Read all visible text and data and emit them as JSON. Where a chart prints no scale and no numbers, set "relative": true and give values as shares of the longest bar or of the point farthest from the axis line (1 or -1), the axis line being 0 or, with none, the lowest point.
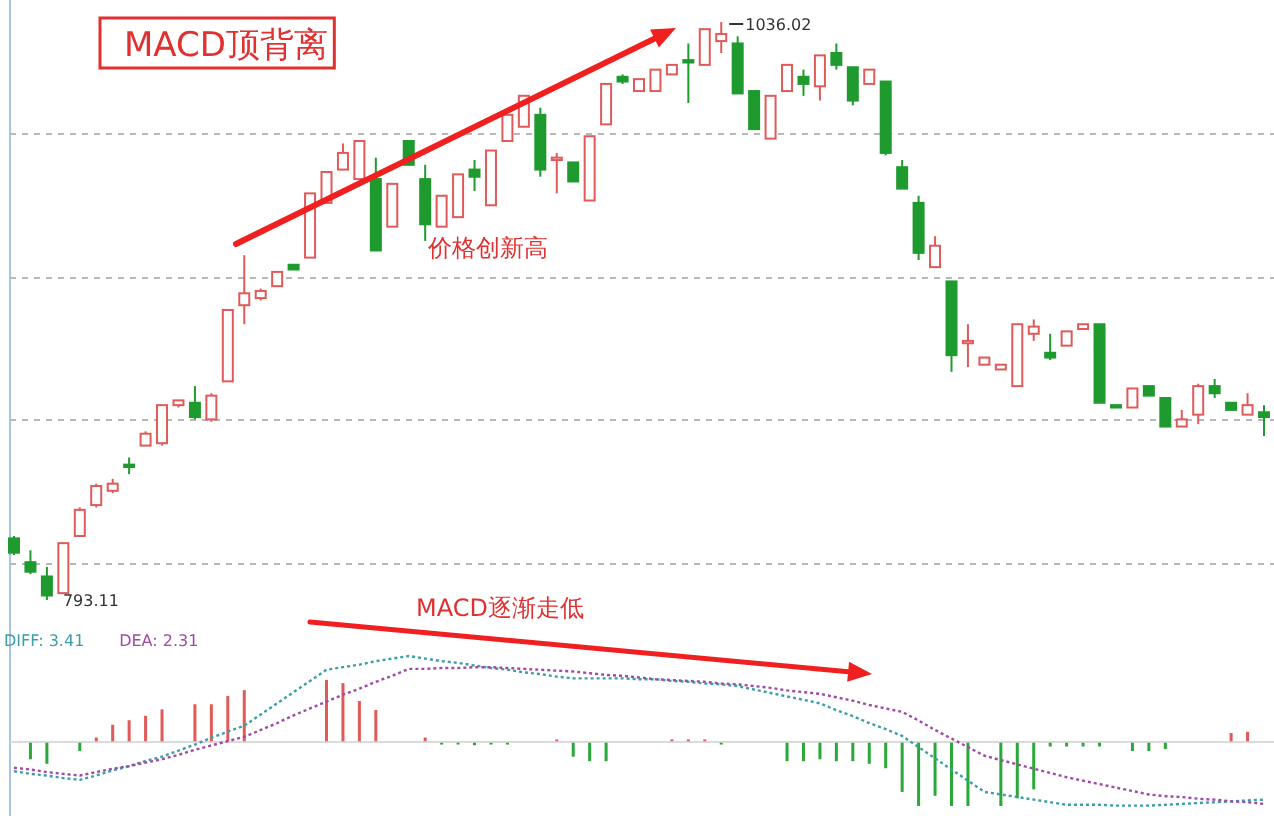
{
  "chart_data": [
    {
      "type": "candlestick",
      "title": "MACD顶背离",
      "categories": [
        null,
        null,
        null,
        null,
        null,
        null,
        null,
        null,
        null,
        null,
        null,
        null,
        null,
        null,
        null,
        null,
        null,
        null,
        null,
        null,
        null,
        null,
        null,
        null,
        null,
        null,
        null,
        null,
        null,
        null,
        null,
        null,
        null,
        null,
        null,
        null,
        null,
        null,
        null,
        null,
        null,
        null,
        null,
        null,
        null,
        null,
        null,
        null,
        null,
        null,
        null,
        null,
        null,
        null,
        null,
        null,
        null,
        null,
        null,
        null,
        null,
        null,
        null,
        null,
        null,
        null,
        null,
        null,
        null,
        null,
        null,
        null,
        null,
        null,
        null,
        null,
        null
      ],
      "ohlc": [
        [
          819,
          820,
          812,
          813
        ],
        [
          809,
          814,
          804,
          805
        ],
        [
          803,
          807,
          793.11,
          795
        ],
        [
          796,
          817,
          796,
          817
        ],
        [
          820,
          832,
          820,
          831
        ],
        [
          833,
          842,
          832,
          841
        ],
        [
          839,
          844,
          838,
          842
        ],
        [
          850,
          853,
          846,
          849
        ],
        [
          858,
          864,
          858,
          863
        ],
        [
          859,
          875,
          858,
          875
        ],
        [
          875,
          877,
          874,
          877
        ],
        [
          876,
          883,
          869,
          870
        ],
        [
          869,
          880,
          868,
          879
        ],
        [
          885,
          915,
          885,
          915
        ],
        [
          917,
          938,
          909,
          922
        ],
        [
          920,
          924,
          919,
          923
        ],
        [
          925,
          931,
          925,
          931
        ],
        [
          934,
          934,
          932,
          932
        ],
        [
          937,
          964,
          937,
          964
        ],
        [
          960,
          973,
          960,
          973
        ],
        [
          974,
          985,
          974,
          981
        ],
        [
          970,
          986,
          970,
          986
        ],
        [
          970,
          979,
          940,
          940
        ],
        [
          950,
          968,
          950,
          968
        ],
        [
          986,
          986,
          976,
          976
        ],
        [
          970,
          976,
          944,
          951
        ],
        [
          950,
          963,
          950,
          963
        ],
        [
          954,
          972,
          954,
          972
        ],
        [
          974,
          978,
          965,
          971
        ],
        [
          959,
          982,
          959,
          982
        ],
        [
          986,
          997,
          986,
          997
        ],
        [
          992,
          1005,
          992,
          1005
        ],
        [
          997,
          1000,
          971,
          974
        ],
        [
          978,
          981,
          964,
          979
        ],
        [
          977,
          977,
          969,
          969
        ],
        [
          961,
          988,
          961,
          988
        ],
        [
          993,
          1010,
          993,
          1010
        ],
        [
          1013,
          1014,
          1010,
          1011
        ],
        [
          1007,
          1012,
          1007,
          1012
        ],
        [
          1007,
          1016,
          1007,
          1016
        ],
        [
          1014,
          1018,
          1014,
          1018
        ],
        [
          1020,
          1027,
          1002,
          1019
        ],
        [
          1018,
          1033,
          1018,
          1033
        ],
        [
          1028,
          1036.02,
          1023,
          1031
        ],
        [
          1027,
          1030,
          1006,
          1006
        ],
        [
          1007,
          1007,
          991,
          991
        ],
        [
          987,
          1005,
          987,
          1005
        ],
        [
          1007,
          1018,
          1007,
          1018
        ],
        [
          1013,
          1016,
          1005,
          1010
        ],
        [
          1009,
          1022,
          1003,
          1022
        ],
        [
          1023,
          1027,
          1016,
          1018
        ],
        [
          1017,
          1017,
          1001,
          1003
        ],
        [
          1010,
          1016,
          1010,
          1016
        ],
        [
          1011,
          1011,
          980,
          981
        ],
        [
          975,
          978,
          966,
          966
        ],
        [
          960,
          963,
          936,
          939
        ],
        [
          933,
          946,
          933,
          942
        ],
        [
          927,
          927,
          889,
          896
        ],
        [
          901,
          909,
          891,
          902
        ],
        [
          892,
          895,
          892,
          895
        ],
        [
          890,
          892,
          890,
          892
        ],
        [
          883,
          909,
          883,
          909
        ],
        [
          905,
          911,
          902,
          908
        ],
        [
          897,
          905,
          894,
          895
        ],
        [
          900,
          906,
          900,
          906
        ],
        [
          907,
          909,
          907,
          909
        ],
        [
          909,
          909,
          876,
          876
        ],
        [
          875,
          875,
          874,
          874
        ],
        [
          874,
          882,
          874,
          882
        ],
        [
          883,
          883,
          879,
          879
        ],
        [
          878,
          878,
          866,
          866
        ],
        [
          866,
          873,
          866,
          869
        ],
        [
          871,
          884,
          867,
          883
        ],
        [
          883,
          886,
          878,
          880
        ],
        [
          876,
          876,
          873,
          873
        ],
        [
          871,
          880,
          871,
          875
        ],
        [
          872,
          875,
          862,
          870
        ]
      ],
      "grid": true,
      "annotations": [
        "价格创新高",
        "1036.02",
        "793.11"
      ]
    },
    {
      "type": "bar",
      "relative": true,
      "annotations": [
        "MACD逐渐走低"
      ],
      "categories": [
        null,
        null,
        null,
        null,
        null,
        null,
        null,
        null,
        null,
        null,
        null,
        null,
        null,
        null,
        null,
        null,
        null,
        null,
        null,
        null,
        null,
        null,
        null,
        null,
        null,
        null,
        null,
        null,
        null,
        null,
        null,
        null,
        null,
        null,
        null,
        null,
        null,
        null,
        null,
        null,
        null,
        null,
        null,
        null,
        null,
        null,
        null,
        null,
        null,
        null,
        null,
        null,
        null,
        null,
        null,
        null,
        null,
        null,
        null,
        null,
        null,
        null,
        null,
        null,
        null,
        null,
        null,
        null,
        null,
        null,
        null,
        null,
        null,
        null,
        null,
        null,
        null
      ],
      "values": [
        null,
        -0.27,
        -0.34,
        null,
        -0.14,
        0.07,
        0.27,
        0.34,
        0.41,
        0.51,
        null,
        0.59,
        0.59,
        0.72,
        0.81,
        null,
        null,
        null,
        null,
        0.97,
        0.92,
        0.64,
        0.5,
        null,
        null,
        0.07,
        -0.04,
        -0.04,
        -0.05,
        -0.04,
        -0.04,
        null,
        null,
        0.04,
        -0.23,
        -0.3,
        -0.3,
        null,
        null,
        null,
        0.04,
        0.04,
        0.04,
        -0.04,
        null,
        null,
        null,
        -0.3,
        -0.3,
        -0.27,
        -0.3,
        -0.3,
        -0.34,
        -0.41,
        -0.78,
        -1,
        -0.84,
        -1,
        -1,
        null,
        -1,
        -0.88,
        -0.74,
        -0.07,
        -0.07,
        -0.07,
        -0.07,
        null,
        -0.14,
        -0.14,
        -0.11,
        null,
        null,
        null,
        0.14,
        0.16,
        null
      ],
      "colors": [
        null,
        "#2aa83a",
        "#2aa83a",
        null,
        "#2aa83a",
        "#e05a5a",
        "#e05a5a",
        "#e05a5a",
        "#e05a5a",
        "#e05a5a",
        null,
        "#e05a5a",
        "#e05a5a",
        "#e05a5a",
        "#e05a5a",
        null,
        null,
        null,
        null,
        "#e05a5a",
        "#e05a5a",
        "#e05a5a",
        "#e05a5a",
        null,
        null,
        "#e05a5a",
        "#2aa83a",
        "#2aa83a",
        "#2aa83a",
        "#2aa83a",
        "#2aa83a",
        null,
        null,
        "#e05a5a",
        "#2aa83a",
        "#2aa83a",
        "#2aa83a",
        null,
        null,
        null,
        "#e05a5a",
        "#e05a5a",
        "#e05a5a",
        "#2aa83a",
        null,
        null,
        null,
        "#2aa83a",
        "#2aa83a",
        "#2aa83a",
        "#2aa83a",
        "#2aa83a",
        "#2aa83a",
        "#2aa83a",
        "#2aa83a",
        "#2aa83a",
        "#2aa83a",
        "#2aa83a",
        "#2aa83a",
        null,
        "#2aa83a",
        "#2aa83a",
        "#2aa83a",
        "#2aa83a",
        "#2aa83a",
        "#2aa83a",
        "#2aa83a",
        null,
        "#2aa83a",
        "#2aa83a",
        "#2aa83a",
        null,
        null,
        null,
        "#e05a5a",
        "#e05a5a",
        null
      ]
    },
    {
      "type": "line",
      "relative": true,
      "line_style": "dotted",
      "categories": [
        null,
        null,
        null,
        null,
        null,
        null,
        null,
        null,
        null,
        null,
        null,
        null,
        null,
        null,
        null,
        null,
        null,
        null,
        null,
        null,
        null,
        null,
        null,
        null,
        null,
        null,
        null,
        null,
        null,
        null,
        null,
        null,
        null,
        null,
        null,
        null,
        null,
        null,
        null,
        null,
        null,
        null,
        null,
        null,
        null,
        null,
        null,
        null,
        null,
        null,
        null,
        null,
        null,
        null,
        null,
        null,
        null,
        null,
        null,
        null,
        null,
        null,
        null,
        null,
        null,
        null,
        null,
        null,
        null,
        null,
        null,
        null,
        null,
        null,
        null,
        null,
        null
      ],
      "series": [
        {
          "name": "DIFF: 3.41",
          "color": "#3a9fa8",
          "values": [
            -0.34,
            -0.37,
            -0.39,
            -0.42,
            -0.44,
            -0.39,
            -0.33,
            -0.28,
            -0.22,
            -0.17,
            -0.1,
            -0.03,
            0.05,
            0.12,
            0.19,
            0.32,
            0.45,
            0.58,
            0.71,
            0.84,
            0.87,
            0.9,
            0.94,
            0.97,
            1,
            0.97,
            0.94,
            0.92,
            0.89,
            0.86,
            0.84,
            0.81,
            0.79,
            0.76,
            0.74,
            0.74,
            0.74,
            0.74,
            0.73,
            0.73,
            0.71,
            0.7,
            0.68,
            0.67,
            0.65,
            0.61,
            0.57,
            0.53,
            0.49,
            0.45,
            0.37,
            0.3,
            0.22,
            0.15,
            0.07,
            -0.06,
            -0.19,
            -0.32,
            -0.45,
            -0.58,
            -0.61,
            -0.64,
            -0.67,
            -0.7,
            -0.73,
            -0.73,
            -0.73,
            -0.74,
            -0.74,
            -0.74,
            -0.73,
            -0.72,
            -0.71,
            -0.7,
            -0.69,
            -0.68,
            -0.67
          ]
        },
        {
          "name": "DEA: 2.31",
          "color": "#a04aa8",
          "values": [
            -0.3,
            -0.32,
            -0.35,
            -0.37,
            -0.39,
            -0.35,
            -0.31,
            -0.28,
            -0.24,
            -0.2,
            -0.15,
            -0.09,
            -0.04,
            0.01,
            0.06,
            0.14,
            0.22,
            0.31,
            0.39,
            0.47,
            0.55,
            0.62,
            0.7,
            0.77,
            0.85,
            0.85,
            0.86,
            0.86,
            0.87,
            0.87,
            0.86,
            0.85,
            0.84,
            0.83,
            0.82,
            0.8,
            0.78,
            0.77,
            0.75,
            0.73,
            0.72,
            0.71,
            0.7,
            0.68,
            0.67,
            0.65,
            0.63,
            0.6,
            0.58,
            0.56,
            0.52,
            0.48,
            0.43,
            0.39,
            0.35,
            0.25,
            0.14,
            0.04,
            -0.06,
            -0.16,
            -0.21,
            -0.26,
            -0.31,
            -0.36,
            -0.41,
            -0.45,
            -0.49,
            -0.53,
            -0.57,
            -0.61,
            -0.63,
            -0.64,
            -0.66,
            -0.67,
            -0.69,
            -0.7,
            -0.72
          ]
        }
      ]
    }
  ]
}
